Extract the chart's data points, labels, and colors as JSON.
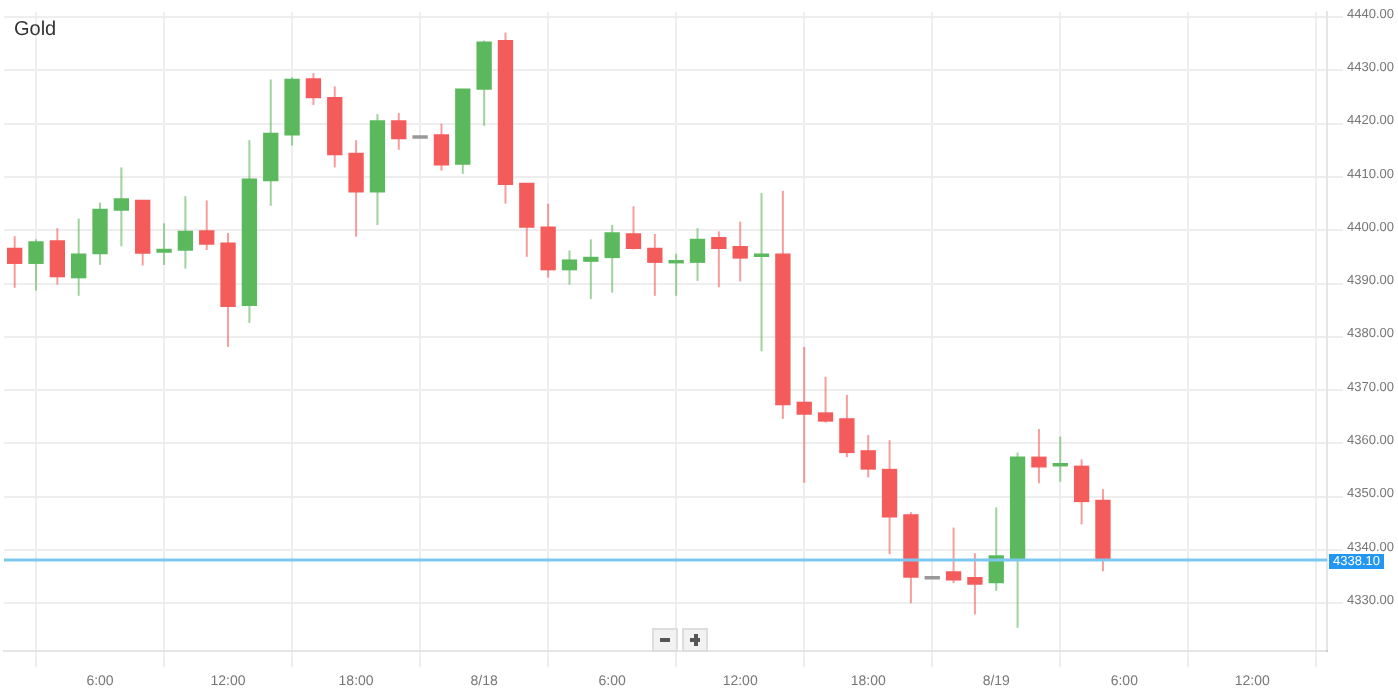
{
  "chart_data": {
    "type": "candlestick",
    "title": "Gold",
    "x": [
      "--08-17T02:00",
      "--08-17T03:00",
      "--08-17T04:00",
      "--08-17T05:00",
      "--08-17T06:00",
      "--08-17T07:00",
      "--08-17T08:00",
      "--08-17T09:00",
      "--08-17T10:00",
      "--08-17T11:00",
      "--08-17T12:00",
      "--08-17T13:00",
      "--08-17T14:00",
      "--08-17T15:00",
      "--08-17T16:00",
      "--08-17T17:00",
      "--08-17T18:00",
      "--08-17T19:00",
      "--08-17T20:00",
      "--08-17T21:00",
      "--08-17T22:00",
      "--08-17T23:00",
      "--08-18T00:00",
      "--08-18T01:00",
      "--08-18T02:00",
      "--08-18T03:00",
      "--08-18T04:00",
      "--08-18T05:00",
      "--08-18T06:00",
      "--08-18T07:00",
      "--08-18T08:00",
      "--08-18T09:00",
      "--08-18T10:00",
      "--08-18T11:00",
      "--08-18T12:00",
      "--08-18T13:00",
      "--08-18T14:00",
      "--08-18T15:00",
      "--08-18T16:00",
      "--08-18T17:00",
      "--08-18T18:00",
      "--08-18T19:00",
      "--08-18T20:00",
      "--08-18T21:00",
      "--08-18T22:00",
      "--08-18T23:00",
      "--08-19T00:00",
      "--08-19T01:00",
      "--08-19T02:00",
      "--08-19T03:00",
      "--08-19T04:00",
      "--08-19T05:00"
    ],
    "ohlc": [
      [
        4396.6,
        4398.9,
        4389.2,
        4393.8
      ],
      [
        4393.8,
        4398.3,
        4388.7,
        4397.8
      ],
      [
        4398.0,
        4400.4,
        4389.8,
        4391.3
      ],
      [
        4391.1,
        4402.2,
        4387.7,
        4395.5
      ],
      [
        4395.6,
        4405.2,
        4393.5,
        4403.9
      ],
      [
        4403.8,
        4411.8,
        4397.0,
        4405.9
      ],
      [
        4405.6,
        4405.7,
        4393.4,
        4395.7
      ],
      [
        4395.9,
        4401.3,
        4393.5,
        4396.4
      ],
      [
        4396.3,
        4406.4,
        4392.8,
        4399.8
      ],
      [
        4399.9,
        4405.6,
        4396.3,
        4397.4
      ],
      [
        4397.6,
        4399.5,
        4378.1,
        4385.7
      ],
      [
        4385.9,
        4416.9,
        4382.6,
        4409.6
      ],
      [
        4409.3,
        4428.3,
        4404.6,
        4418.2
      ],
      [
        4417.9,
        4428.7,
        4415.9,
        4428.3
      ],
      [
        4428.4,
        4429.5,
        4423.5,
        4424.9
      ],
      [
        4424.9,
        4427.0,
        4411.8,
        4414.2
      ],
      [
        4414.4,
        4416.9,
        4398.8,
        4407.2
      ],
      [
        4407.2,
        4421.8,
        4401.0,
        4420.5
      ],
      [
        4420.5,
        4422.0,
        4415.1,
        4417.2
      ],
      [
        4417.3,
        4417.7,
        4417.3,
        4417.7
      ],
      [
        4417.9,
        4420.0,
        4411.2,
        4412.3
      ],
      [
        4412.4,
        4426.5,
        4410.6,
        4426.5
      ],
      [
        4426.5,
        4435.6,
        4419.6,
        4435.3
      ],
      [
        4435.6,
        4437.1,
        4405.0,
        4408.6
      ],
      [
        4408.8,
        4408.8,
        4395.0,
        4400.6
      ],
      [
        4400.6,
        4405.0,
        4391.1,
        4392.6
      ],
      [
        4392.6,
        4396.2,
        4389.8,
        4394.4
      ],
      [
        4394.2,
        4398.3,
        4387.1,
        4394.9
      ],
      [
        4394.9,
        4401.0,
        4388.3,
        4399.5
      ],
      [
        4399.3,
        4404.5,
        4396.4,
        4396.6
      ],
      [
        4396.6,
        4399.3,
        4387.7,
        4394.0
      ],
      [
        4393.9,
        4395.6,
        4387.7,
        4394.3
      ],
      [
        4394.0,
        4400.4,
        4390.5,
        4398.3
      ],
      [
        4398.6,
        4399.8,
        4389.3,
        4396.6
      ],
      [
        4396.9,
        4401.6,
        4390.4,
        4394.8
      ],
      [
        4395.1,
        4407.0,
        4377.3,
        4395.5
      ],
      [
        4395.5,
        4407.4,
        4364.6,
        4367.3
      ],
      [
        4367.7,
        4378.1,
        4352.6,
        4365.5
      ],
      [
        4365.7,
        4372.5,
        4363.9,
        4364.2
      ],
      [
        4364.6,
        4369.1,
        4357.4,
        4358.3
      ],
      [
        4358.6,
        4361.6,
        4353.6,
        4355.2
      ],
      [
        4355.1,
        4360.6,
        4339.2,
        4346.2
      ],
      [
        4346.6,
        4347.1,
        4330.0,
        4334.9
      ],
      [
        4334.6,
        4335.0,
        4334.6,
        4335.0
      ],
      [
        4335.9,
        4344.2,
        4333.8,
        4334.4
      ],
      [
        4334.8,
        4339.4,
        4327.9,
        4333.6
      ],
      [
        4333.9,
        4348.0,
        4332.3,
        4338.9
      ],
      [
        4338.3,
        4358.3,
        4325.4,
        4357.4
      ],
      [
        4357.4,
        4362.7,
        4352.5,
        4355.6
      ],
      [
        4355.8,
        4361.3,
        4352.8,
        4356.2
      ],
      [
        4355.7,
        4357.0,
        4344.8,
        4349.1
      ],
      [
        4349.3,
        4351.4,
        4336.0,
        4338.3
      ]
    ],
    "colors": [
      "#f45b5b",
      "#5cb85c",
      "#f45b5b",
      "#5cb85c",
      "#5cb85c",
      "#5cb85c",
      "#f45b5b",
      "#5cb85c",
      "#5cb85c",
      "#f45b5b",
      "#f45b5b",
      "#5cb85c",
      "#5cb85c",
      "#5cb85c",
      "#f45b5b",
      "#f45b5b",
      "#f45b5b",
      "#5cb85c",
      "#f45b5b",
      "#999999",
      "#f45b5b",
      "#5cb85c",
      "#5cb85c",
      "#f45b5b",
      "#f45b5b",
      "#f45b5b",
      "#5cb85c",
      "#5cb85c",
      "#5cb85c",
      "#f45b5b",
      "#f45b5b",
      "#5cb85c",
      "#5cb85c",
      "#f45b5b",
      "#f45b5b",
      "#5cb85c",
      "#f45b5b",
      "#f45b5b",
      "#f45b5b",
      "#f45b5b",
      "#f45b5b",
      "#f45b5b",
      "#f45b5b",
      "#999999",
      "#f45b5b",
      "#f45b5b",
      "#5cb85c",
      "#5cb85c",
      "#f45b5b",
      "#5cb85c",
      "#f45b5b",
      "#f45b5b"
    ],
    "xlim": [
      "--08-17T01:30",
      "--08-19T15:30"
    ],
    "xticks": [
      {
        "value": "--08-17T06:00",
        "label": "6:00"
      },
      {
        "value": "--08-17T12:00",
        "label": "12:00"
      },
      {
        "value": "--08-17T18:00",
        "label": "18:00"
      },
      {
        "value": "--08-18T00:00",
        "label": "8/18"
      },
      {
        "value": "--08-18T06:00",
        "label": "6:00"
      },
      {
        "value": "--08-18T12:00",
        "label": "12:00"
      },
      {
        "value": "--08-18T18:00",
        "label": "18:00"
      },
      {
        "value": "--08-19T00:00",
        "label": "8/19"
      },
      {
        "value": "--08-19T06:00",
        "label": "6:00"
      },
      {
        "value": "--08-19T12:00",
        "label": "12:00"
      }
    ],
    "ylim": [
      4321,
      4441
    ],
    "yticks": [
      {
        "value": 4330,
        "label": "4330.00"
      },
      {
        "value": 4340,
        "label": "4340.00"
      },
      {
        "value": 4350,
        "label": "4350.00"
      },
      {
        "value": 4360,
        "label": "4360.00"
      },
      {
        "value": 4370,
        "label": "4370.00"
      },
      {
        "value": 4380,
        "label": "4380.00"
      },
      {
        "value": 4390,
        "label": "4390.00"
      },
      {
        "value": 4400,
        "label": "4400.00"
      },
      {
        "value": 4410,
        "label": "4410.00"
      },
      {
        "value": 4420,
        "label": "4420.00"
      },
      {
        "value": 4430,
        "label": "4430.00"
      },
      {
        "value": 4440,
        "label": "4440.00"
      }
    ],
    "ref_lines": [
      {
        "axis": "y",
        "value": 4338.1,
        "label": "4338.10",
        "color": "#7cc7f0"
      }
    ],
    "grid": true
  }
}
